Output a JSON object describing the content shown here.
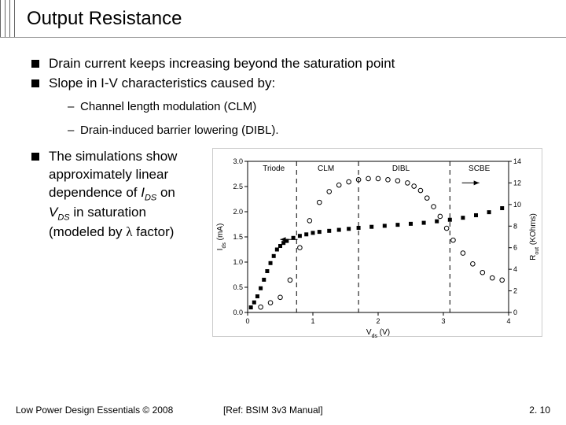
{
  "title": "Output Resistance",
  "bullet1": "Drain current keeps increasing beyond the saturation point",
  "bullet2": "Slope in I-V characteristics caused by:",
  "sub1": "Channel length modulation (CLM)",
  "sub2": "Drain-induced barrier lowering (DIBL).",
  "para_pre": "The simulations show approximately linear dependence of ",
  "para_ids": "I",
  "para_ids_sub": "DS",
  "para_mid1": " on ",
  "para_vds": "V",
  "para_vds_sub": "DS",
  "para_mid2": " in saturation (modeled by ",
  "para_lambda": "λ",
  "para_end": " factor)",
  "footer_left": "Low Power Design Essentials © 2008",
  "footer_mid": "[Ref: BSIM 3v3 Manual]",
  "footer_right": "2. 10",
  "chart": {
    "xlim": [
      0,
      4
    ],
    "y1lim": [
      0,
      3.0
    ],
    "y2lim": [
      0,
      14
    ],
    "y1ticks": [
      0.0,
      0.5,
      1.0,
      1.5,
      2.0,
      2.5,
      3.0
    ],
    "y2ticks": [
      0,
      2,
      4,
      6,
      8,
      10,
      12,
      14
    ],
    "xticks": [
      0,
      1,
      2,
      3,
      4
    ],
    "xlabel_pre": "V",
    "xlabel_sub": "ds",
    "xlabel_post": " (V)",
    "y1label_pre": "I",
    "y1label_sub": "ds",
    "y1label_post": " (mA)",
    "y2label_pre": "R",
    "y2label_sub": "out",
    "y2label_post": " (KOhms)",
    "regions": [
      "Triode",
      "CLM",
      "DIBL",
      "SCBE"
    ],
    "region_x": [
      0.4,
      1.2,
      2.35,
      3.55
    ],
    "divider_x": [
      0.75,
      1.7,
      3.1
    ],
    "ids_x": [
      0.05,
      0.1,
      0.15,
      0.2,
      0.25,
      0.3,
      0.35,
      0.4,
      0.45,
      0.5,
      0.55,
      0.6,
      0.7,
      0.8,
      0.9,
      1.0,
      1.1,
      1.25,
      1.4,
      1.55,
      1.7,
      1.9,
      2.1,
      2.3,
      2.5,
      2.7,
      2.9,
      3.1,
      3.3,
      3.5,
      3.7,
      3.9
    ],
    "ids_y": [
      0.1,
      0.2,
      0.32,
      0.48,
      0.65,
      0.82,
      0.98,
      1.12,
      1.25,
      1.32,
      1.38,
      1.42,
      1.48,
      1.52,
      1.55,
      1.58,
      1.6,
      1.62,
      1.64,
      1.66,
      1.68,
      1.7,
      1.72,
      1.74,
      1.76,
      1.78,
      1.81,
      1.84,
      1.88,
      1.93,
      1.99,
      2.07
    ],
    "rout_x": [
      0.2,
      0.35,
      0.5,
      0.65,
      0.8,
      0.95,
      1.1,
      1.25,
      1.4,
      1.55,
      1.7,
      1.85,
      2.0,
      2.15,
      2.3,
      2.45,
      2.55,
      2.65,
      2.75,
      2.85,
      2.95,
      3.05,
      3.15,
      3.3,
      3.45,
      3.6,
      3.75,
      3.9
    ],
    "rout_y": [
      0.5,
      0.9,
      1.4,
      3.0,
      6.0,
      8.5,
      10.2,
      11.2,
      11.8,
      12.1,
      12.3,
      12.4,
      12.4,
      12.3,
      12.2,
      12.0,
      11.7,
      11.3,
      10.6,
      9.8,
      8.9,
      7.8,
      6.7,
      5.5,
      4.5,
      3.7,
      3.2,
      3.0
    ],
    "arrow_left_x": 0.5,
    "arrow_left_y": 1.45,
    "arrow_right_x": 3.55,
    "arrow_right_y1": 2.05,
    "arrow_right_y2": 12.0,
    "colors": {
      "axis": "#000000",
      "grid": "#000000",
      "ids_marker": "#000000",
      "rout_marker": "#000000",
      "background": "#ffffff"
    },
    "font_size_label": 10,
    "font_size_tick": 9
  }
}
